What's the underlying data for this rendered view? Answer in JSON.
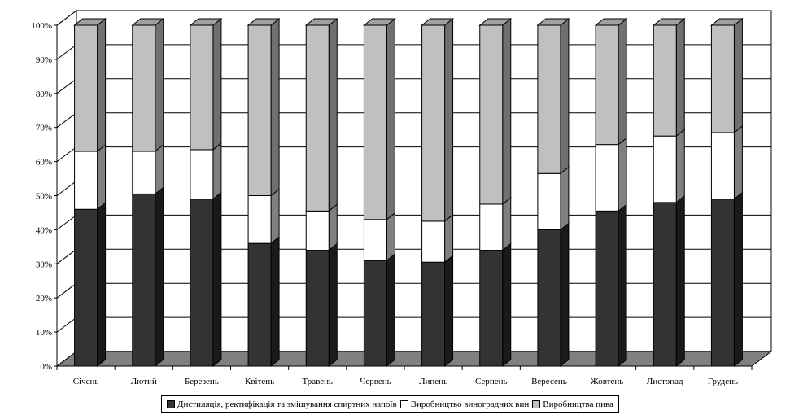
{
  "chart_data": {
    "type": "bar",
    "stacked": "percent",
    "three_d": true,
    "categories": [
      "Січень",
      "Лютий",
      "Березень",
      "Квітень",
      "Травень",
      "Червень",
      "Липень",
      "Серпень",
      "Вересень",
      "Жовтень",
      "Листопад",
      "Грудень"
    ],
    "series": [
      {
        "name": "Дистиляція, ректифікація та змішування спиртних напоїв",
        "color": "#333333",
        "values": [
          46,
          50.5,
          49,
          36,
          34,
          31,
          30.5,
          34,
          40,
          45.5,
          48,
          49
        ]
      },
      {
        "name": "Виробництво виноградних вин",
        "color": "#ffffff",
        "values": [
          17,
          12.5,
          14.5,
          14,
          11.5,
          12,
          12,
          13.5,
          16.5,
          19.5,
          19.5,
          19.5
        ]
      },
      {
        "name": "Виробництва пива",
        "color": "#c0c0c0",
        "values": [
          37,
          37,
          36.5,
          50,
          54.5,
          57,
          57.5,
          52.5,
          43.5,
          35,
          32.5,
          31.5
        ]
      }
    ],
    "y_ticks": [
      "0%",
      "10%",
      "20%",
      "30%",
      "40%",
      "50%",
      "60%",
      "70%",
      "80%",
      "90%",
      "100%"
    ],
    "ylim": [
      0,
      100
    ],
    "grid": true,
    "legend_position": "bottom"
  }
}
